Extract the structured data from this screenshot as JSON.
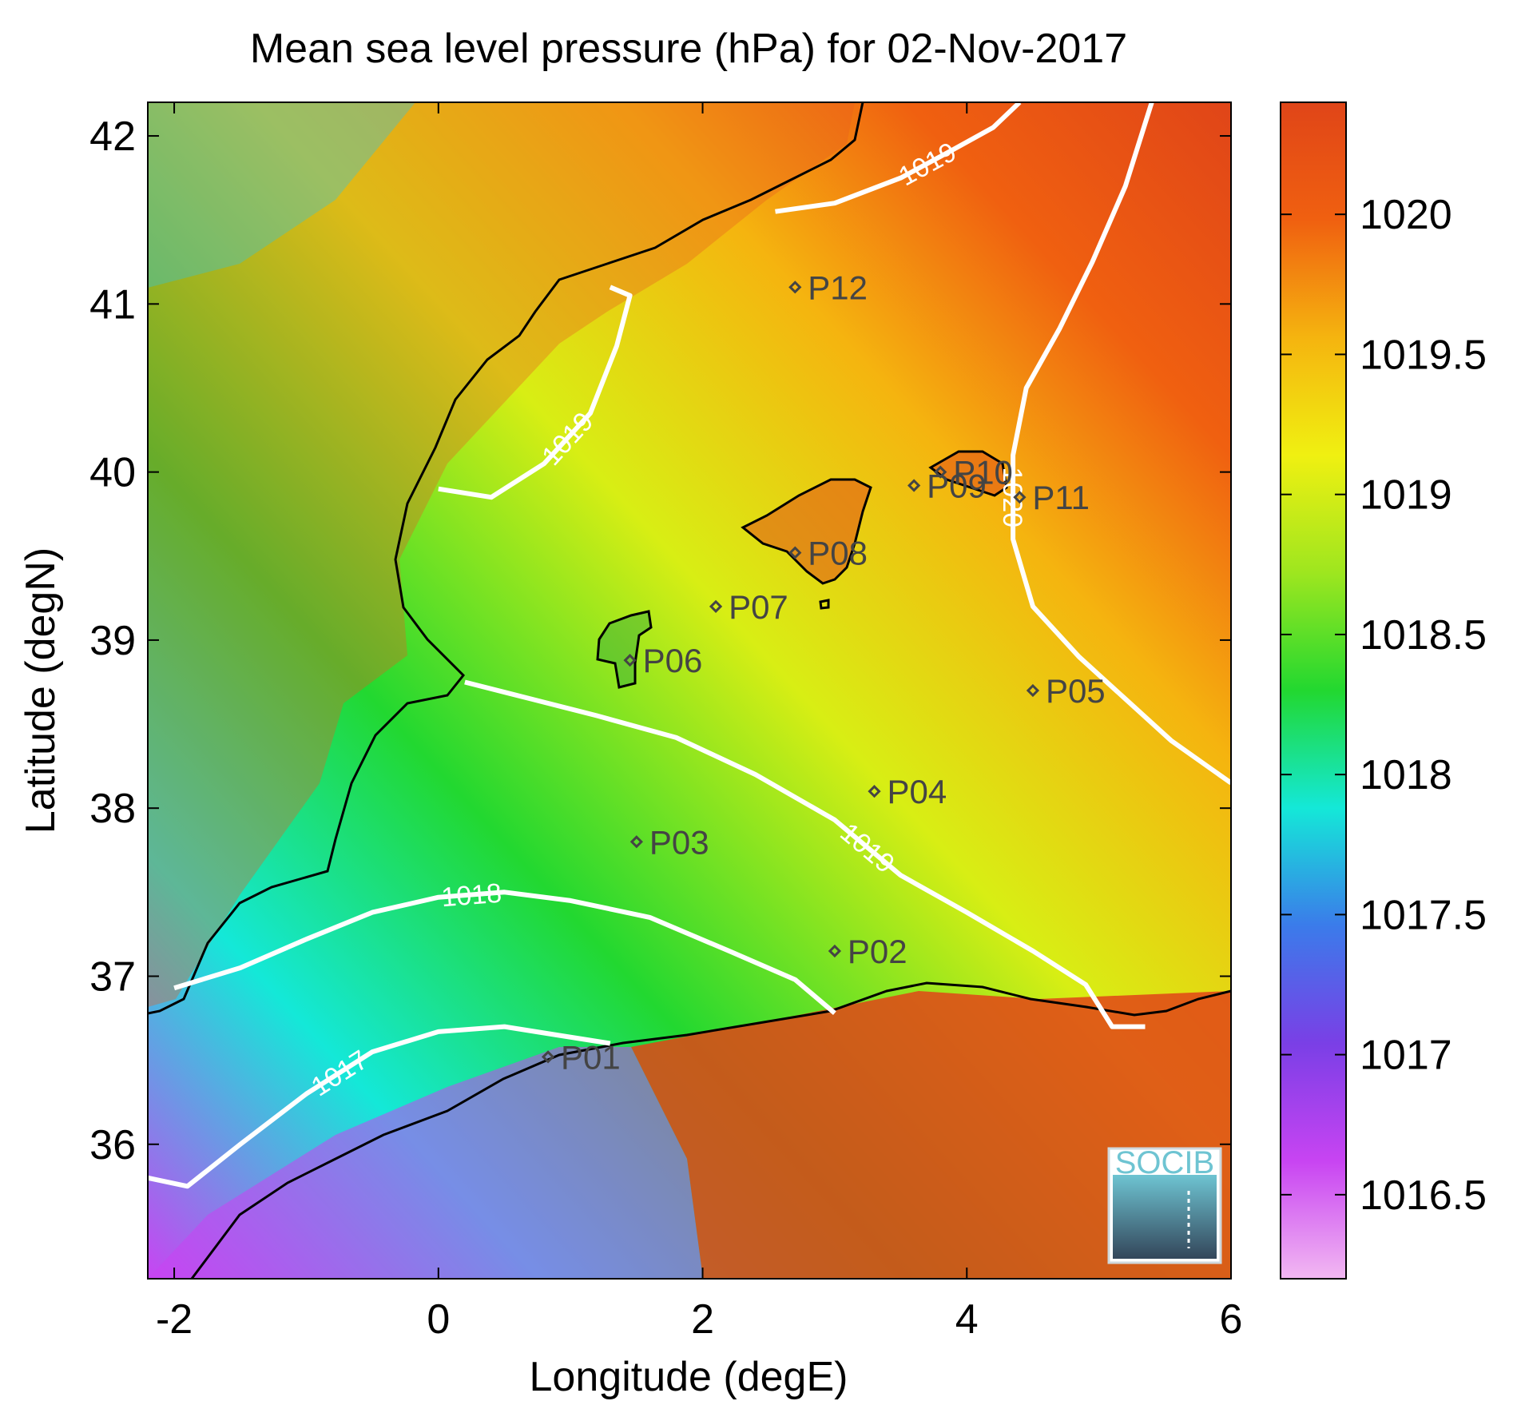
{
  "chart_data": {
    "type": "heatmap",
    "title": "Mean sea level pressure (hPa) for 02-Nov-2017",
    "xlabel": "Longitude (degE)",
    "ylabel": "Latitude (degN)",
    "xlim": [
      -2.2,
      6
    ],
    "ylim": [
      35.2,
      42.2
    ],
    "xticks": [
      -2,
      0,
      2,
      4,
      6
    ],
    "yticks": [
      36,
      37,
      38,
      39,
      40,
      41,
      42
    ],
    "colorbar": {
      "label_unit": "hPa",
      "range": [
        1016.2,
        1020.4
      ],
      "ticks": [
        "1016.5",
        "1017",
        "1017.5",
        "1018",
        "1018.5",
        "1019",
        "1019.5",
        "1020"
      ],
      "tick_values": [
        1016.5,
        1017,
        1017.5,
        1018,
        1018.5,
        1019,
        1019.5,
        1020
      ],
      "colormap": [
        "#f2b8f2",
        "#c844f2",
        "#7a3fe6",
        "#3b7bea",
        "#14e8d8",
        "#22d830",
        "#9ee61f",
        "#f0f011",
        "#f5b40f",
        "#f06010",
        "#e04518"
      ]
    },
    "contours": [
      {
        "label": "1017",
        "points": [
          [
            -2.2,
            35.8
          ],
          [
            -1.9,
            35.75
          ],
          [
            -1.5,
            36.0
          ],
          [
            -1.0,
            36.3
          ],
          [
            -0.5,
            36.55
          ],
          [
            0.0,
            36.67
          ],
          [
            0.5,
            36.7
          ],
          [
            0.9,
            36.65
          ],
          [
            1.3,
            36.6
          ]
        ]
      },
      {
        "label": "1018",
        "points": [
          [
            -2.0,
            36.93
          ],
          [
            -1.5,
            37.05
          ],
          [
            -1.0,
            37.22
          ],
          [
            -0.5,
            37.38
          ],
          [
            0.0,
            37.47
          ],
          [
            0.5,
            37.5
          ],
          [
            1.0,
            37.45
          ],
          [
            1.6,
            37.35
          ],
          [
            2.2,
            37.15
          ],
          [
            2.7,
            36.98
          ],
          [
            3.0,
            36.78
          ]
        ]
      },
      {
        "label": "1019",
        "points": [
          [
            0.2,
            38.75
          ],
          [
            0.7,
            38.65
          ],
          [
            1.2,
            38.55
          ],
          [
            1.8,
            38.42
          ],
          [
            2.4,
            38.2
          ],
          [
            3.0,
            37.93
          ],
          [
            3.5,
            37.6
          ],
          [
            4.0,
            37.38
          ],
          [
            4.5,
            37.15
          ],
          [
            4.9,
            36.95
          ],
          [
            5.1,
            36.7
          ],
          [
            5.35,
            36.7
          ]
        ]
      },
      {
        "label": "1019",
        "points": [
          [
            0.0,
            39.9
          ],
          [
            0.4,
            39.85
          ],
          [
            0.8,
            40.05
          ],
          [
            1.15,
            40.35
          ],
          [
            1.35,
            40.75
          ],
          [
            1.45,
            41.05
          ],
          [
            1.3,
            41.1
          ]
        ]
      },
      {
        "label": "1019",
        "points": [
          [
            2.55,
            41.55
          ],
          [
            3.0,
            41.6
          ],
          [
            3.5,
            41.75
          ],
          [
            3.9,
            41.92
          ],
          [
            4.2,
            42.05
          ],
          [
            4.4,
            42.2
          ]
        ]
      },
      {
        "label": "1020",
        "points": [
          [
            5.4,
            42.2
          ],
          [
            5.2,
            41.7
          ],
          [
            4.95,
            41.25
          ],
          [
            4.7,
            40.85
          ],
          [
            4.45,
            40.5
          ],
          [
            4.35,
            40.1
          ],
          [
            4.35,
            39.6
          ],
          [
            4.5,
            39.2
          ],
          [
            4.85,
            38.9
          ],
          [
            5.2,
            38.65
          ],
          [
            5.55,
            38.4
          ],
          [
            6.0,
            38.15
          ]
        ]
      }
    ],
    "points": [
      {
        "name": "P01",
        "lon": 0.83,
        "lat": 36.52
      },
      {
        "name": "P02",
        "lon": 3.0,
        "lat": 37.15
      },
      {
        "name": "P03",
        "lon": 1.5,
        "lat": 37.8
      },
      {
        "name": "P04",
        "lon": 3.3,
        "lat": 38.1
      },
      {
        "name": "P05",
        "lon": 4.5,
        "lat": 38.7
      },
      {
        "name": "P06",
        "lon": 1.45,
        "lat": 38.88
      },
      {
        "name": "P07",
        "lon": 2.1,
        "lat": 39.2
      },
      {
        "name": "P08",
        "lon": 2.7,
        "lat": 39.52
      },
      {
        "name": "P09",
        "lon": 3.6,
        "lat": 39.92
      },
      {
        "name": "P10",
        "lon": 3.8,
        "lat": 40.0
      },
      {
        "name": "P11",
        "lon": 4.4,
        "lat": 39.85
      },
      {
        "name": "P12",
        "lon": 2.7,
        "lat": 41.1
      }
    ]
  },
  "logo": {
    "text": "SOCIB"
  }
}
